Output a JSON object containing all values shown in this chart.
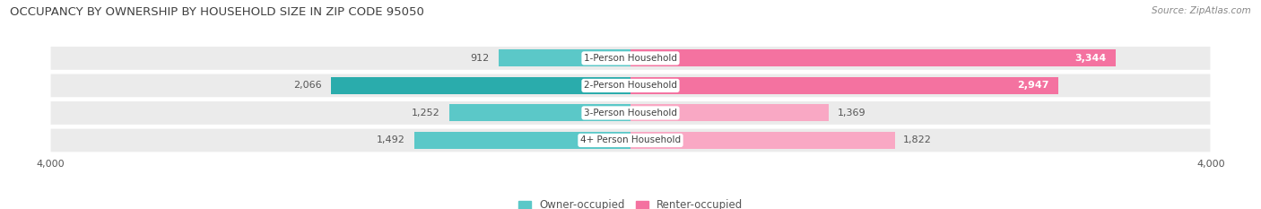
{
  "title": "OCCUPANCY BY OWNERSHIP BY HOUSEHOLD SIZE IN ZIP CODE 95050",
  "source": "Source: ZipAtlas.com",
  "categories": [
    "1-Person Household",
    "2-Person Household",
    "3-Person Household",
    "4+ Person Household"
  ],
  "owner_values": [
    912,
    2066,
    1252,
    1492
  ],
  "renter_values": [
    3344,
    2947,
    1369,
    1822
  ],
  "owner_colors": [
    "#5BC8C8",
    "#2AACAC",
    "#5BC8C8",
    "#5BC8C8"
  ],
  "renter_colors": [
    "#F472A0",
    "#F472A0",
    "#F9A8C4",
    "#F9A8C4"
  ],
  "xlim": 4000,
  "bar_height": 0.62,
  "background_color": "#ffffff",
  "row_bg_color": "#ebebeb",
  "label_fontsize": 8.0,
  "title_fontsize": 9.5,
  "source_fontsize": 7.5,
  "axis_label_fontsize": 8.0,
  "legend_fontsize": 8.5,
  "cat_label_fontsize": 7.5
}
